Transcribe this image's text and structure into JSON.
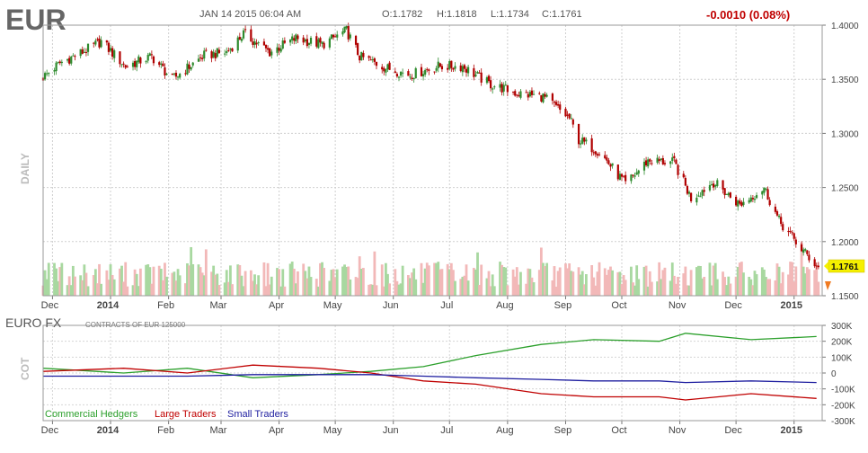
{
  "header": {
    "symbol": "EUR",
    "datetime": "JAN 14 2015 06:04 AM",
    "open": "O:1.1782",
    "high": "H:1.1818",
    "low": "L:1.1734",
    "close": "C:1.1761",
    "change": "-0.0010 (0.08%)"
  },
  "colors": {
    "up": "#2e8b2e",
    "down": "#b00000",
    "vol_up": "#a8d8a0",
    "vol_down": "#f2b8b8",
    "commercial": "#2ca02c",
    "large": "#c00000",
    "small": "#1f1fa0",
    "last_badge": "#f5f000"
  },
  "main_panel": {
    "vertical_title": "DAILY",
    "last_price": "1.1761"
  },
  "cot_panel": {
    "title": "EURO FX",
    "note": "CONTRACTS OF EUR 125000",
    "vertical_title": "COT"
  },
  "legend": {
    "commercial": "Commercial Hedgers",
    "large": "Large Traders",
    "small": "Small Traders"
  },
  "chart_data": [
    {
      "type": "candlestick",
      "title": "EUR",
      "ylabel": "DAILY",
      "x_months": [
        "Dec",
        "2014",
        "Feb",
        "Mar",
        "Apr",
        "May",
        "Jun",
        "Jul",
        "Aug",
        "Sep",
        "Oct",
        "Nov",
        "Dec",
        "2015"
      ],
      "y_ticks": [
        "1.4000",
        "1.3500",
        "1.3000",
        "1.2500",
        "1.2000",
        "1.1500"
      ],
      "ylim": [
        1.15,
        1.4
      ],
      "price_path": [
        {
          "date": "2013-11-26",
          "close": 1.352
        },
        {
          "date": "2013-12-05",
          "close": 1.365
        },
        {
          "date": "2013-12-18",
          "close": 1.376
        },
        {
          "date": "2013-12-27",
          "close": 1.385
        },
        {
          "date": "2014-01-09",
          "close": 1.362
        },
        {
          "date": "2014-01-23",
          "close": 1.371
        },
        {
          "date": "2014-02-03",
          "close": 1.35
        },
        {
          "date": "2014-02-20",
          "close": 1.372
        },
        {
          "date": "2014-03-04",
          "close": 1.375
        },
        {
          "date": "2014-03-13",
          "close": 1.392
        },
        {
          "date": "2014-03-27",
          "close": 1.375
        },
        {
          "date": "2014-04-10",
          "close": 1.388
        },
        {
          "date": "2014-04-24",
          "close": 1.382
        },
        {
          "date": "2014-05-07",
          "close": 1.395
        },
        {
          "date": "2014-05-14",
          "close": 1.371
        },
        {
          "date": "2014-05-29",
          "close": 1.36
        },
        {
          "date": "2014-06-10",
          "close": 1.354
        },
        {
          "date": "2014-06-25",
          "close": 1.362
        },
        {
          "date": "2014-07-08",
          "close": 1.362
        },
        {
          "date": "2014-07-22",
          "close": 1.346
        },
        {
          "date": "2014-08-06",
          "close": 1.337
        },
        {
          "date": "2014-08-20",
          "close": 1.334
        },
        {
          "date": "2014-09-03",
          "close": 1.314
        },
        {
          "date": "2014-09-08",
          "close": 1.294
        },
        {
          "date": "2014-09-19",
          "close": 1.283
        },
        {
          "date": "2014-10-03",
          "close": 1.253
        },
        {
          "date": "2014-10-15",
          "close": 1.275
        },
        {
          "date": "2014-10-29",
          "close": 1.273
        },
        {
          "date": "2014-11-07",
          "close": 1.24
        },
        {
          "date": "2014-11-19",
          "close": 1.255
        },
        {
          "date": "2014-12-03",
          "close": 1.234
        },
        {
          "date": "2014-12-16",
          "close": 1.25
        },
        {
          "date": "2014-12-24",
          "close": 1.219
        },
        {
          "date": "2015-01-05",
          "close": 1.193
        },
        {
          "date": "2015-01-14",
          "close": 1.1761
        }
      ],
      "volume_note": "bars colored green for up days and red for down days"
    },
    {
      "type": "line",
      "title": "EURO FX",
      "ylabel": "COT",
      "x_months": [
        "Dec",
        "2014",
        "Feb",
        "Mar",
        "Apr",
        "May",
        "Jun",
        "Jul",
        "Aug",
        "Sep",
        "Oct",
        "Nov",
        "Dec",
        "2015"
      ],
      "y_ticks": [
        "300K",
        "200K",
        "100K",
        "0",
        "-100K",
        "-200K",
        "-300K"
      ],
      "ylim": [
        -300000,
        300000
      ],
      "series": [
        {
          "name": "Commercial Hedgers",
          "points": [
            {
              "date": "2013-11-26",
              "value": 30000
            },
            {
              "date": "2014-01-08",
              "value": 0
            },
            {
              "date": "2014-02-11",
              "value": 30000
            },
            {
              "date": "2014-03-18",
              "value": -30000
            },
            {
              "date": "2014-04-22",
              "value": -10000
            },
            {
              "date": "2014-05-20",
              "value": 10000
            },
            {
              "date": "2014-06-17",
              "value": 40000
            },
            {
              "date": "2014-07-15",
              "value": 110000
            },
            {
              "date": "2014-08-19",
              "value": 180000
            },
            {
              "date": "2014-09-16",
              "value": 210000
            },
            {
              "date": "2014-10-21",
              "value": 200000
            },
            {
              "date": "2014-11-04",
              "value": 250000
            },
            {
              "date": "2014-12-09",
              "value": 210000
            },
            {
              "date": "2015-01-13",
              "value": 230000
            }
          ]
        },
        {
          "name": "Large Traders",
          "points": [
            {
              "date": "2013-11-26",
              "value": 10000
            },
            {
              "date": "2014-01-08",
              "value": 30000
            },
            {
              "date": "2014-02-11",
              "value": 0
            },
            {
              "date": "2014-03-18",
              "value": 50000
            },
            {
              "date": "2014-04-22",
              "value": 30000
            },
            {
              "date": "2014-05-20",
              "value": 0
            },
            {
              "date": "2014-06-17",
              "value": -50000
            },
            {
              "date": "2014-07-15",
              "value": -70000
            },
            {
              "date": "2014-08-19",
              "value": -130000
            },
            {
              "date": "2014-09-16",
              "value": -150000
            },
            {
              "date": "2014-10-21",
              "value": -150000
            },
            {
              "date": "2014-11-04",
              "value": -170000
            },
            {
              "date": "2014-12-09",
              "value": -130000
            },
            {
              "date": "2015-01-13",
              "value": -160000
            }
          ]
        },
        {
          "name": "Small Traders",
          "points": [
            {
              "date": "2013-11-26",
              "value": -20000
            },
            {
              "date": "2014-01-08",
              "value": -20000
            },
            {
              "date": "2014-02-11",
              "value": -20000
            },
            {
              "date": "2014-03-18",
              "value": -10000
            },
            {
              "date": "2014-04-22",
              "value": -10000
            },
            {
              "date": "2014-05-20",
              "value": -10000
            },
            {
              "date": "2014-06-17",
              "value": -20000
            },
            {
              "date": "2014-07-15",
              "value": -30000
            },
            {
              "date": "2014-08-19",
              "value": -40000
            },
            {
              "date": "2014-09-16",
              "value": -50000
            },
            {
              "date": "2014-10-21",
              "value": -50000
            },
            {
              "date": "2014-11-04",
              "value": -60000
            },
            {
              "date": "2014-12-09",
              "value": -50000
            },
            {
              "date": "2015-01-13",
              "value": -60000
            }
          ]
        }
      ]
    }
  ]
}
